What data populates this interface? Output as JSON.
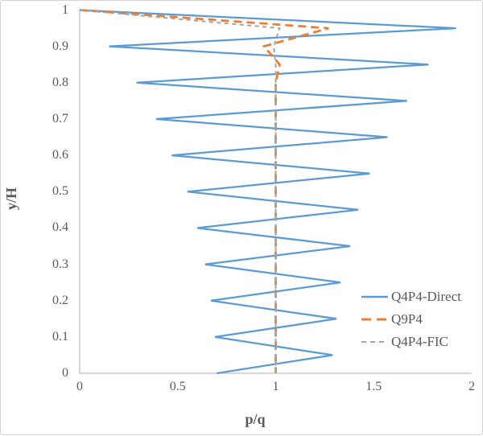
{
  "chart_data": {
    "type": "line",
    "title": "",
    "xlabel": "p/q",
    "ylabel": "y/H",
    "xlim": [
      0,
      2
    ],
    "ylim": [
      0,
      1
    ],
    "x_ticks": [
      "0",
      "0.5",
      "1",
      "1.5",
      "2"
    ],
    "y_ticks": [
      "0",
      "0.1",
      "0.2",
      "0.3",
      "0.4",
      "0.5",
      "0.6",
      "0.7",
      "0.8",
      "0.9",
      "1"
    ],
    "grid": false,
    "legend_position": "inside-right",
    "series": [
      {
        "name": "Q4P4-Direct",
        "color": "#5B9BD5",
        "style": "solid",
        "points": [
          [
            0,
            1
          ],
          [
            1.92,
            0.95
          ],
          [
            0.15,
            0.9
          ],
          [
            1.78,
            0.85
          ],
          [
            0.29,
            0.8
          ],
          [
            1.67,
            0.75
          ],
          [
            0.39,
            0.7
          ],
          [
            1.57,
            0.65
          ],
          [
            0.47,
            0.6
          ],
          [
            1.48,
            0.55
          ],
          [
            0.55,
            0.5
          ],
          [
            1.42,
            0.45
          ],
          [
            0.6,
            0.4
          ],
          [
            1.38,
            0.35
          ],
          [
            0.64,
            0.3
          ],
          [
            1.33,
            0.25
          ],
          [
            0.67,
            0.2
          ],
          [
            1.31,
            0.15
          ],
          [
            0.69,
            0.1
          ],
          [
            1.29,
            0.05
          ],
          [
            0.7,
            0
          ]
        ]
      },
      {
        "name": "Q9P4",
        "color": "#ED7D31",
        "style": "long-dash",
        "points": [
          [
            0,
            1
          ],
          [
            1.27,
            0.95
          ],
          [
            0.94,
            0.9
          ],
          [
            1.02,
            0.85
          ],
          [
            1.0,
            0.8
          ],
          [
            1.0,
            0
          ]
        ]
      },
      {
        "name": "Q4P4-FIC",
        "color": "#A5A5A5",
        "style": "short-dash",
        "points": [
          [
            0,
            1
          ],
          [
            1.02,
            0.95
          ],
          [
            0.99,
            0.9
          ],
          [
            1.0,
            0.85
          ],
          [
            1.0,
            0
          ]
        ]
      }
    ]
  },
  "colors": {
    "axis_line": "#BFBFBF",
    "tick_text": "#595959",
    "background": "#FFFFFF",
    "frame_border": "#D4D4D4"
  }
}
